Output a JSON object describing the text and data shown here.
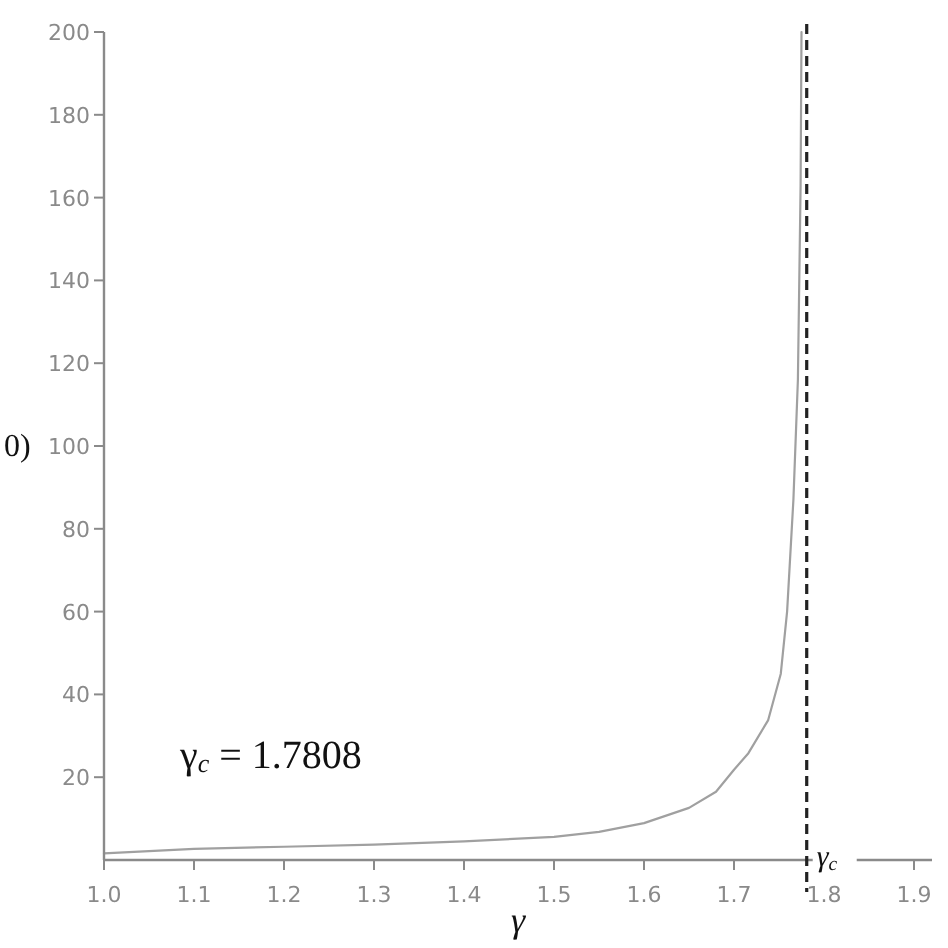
{
  "chart_data": {
    "type": "line",
    "xlabel": "γ",
    "ylabel": "0)",
    "annotations": [
      "γ$_{c}$ = 1.7808"
    ],
    "xlim": [
      1,
      1.92
    ],
    "xticks": [
      {
        "value": 1,
        "label": "1.0"
      },
      1.1,
      1.2,
      1.3,
      1.4,
      1.5,
      1.6,
      1.7,
      1.8,
      1.9
    ],
    "ylim": [
      0,
      200
    ],
    "yticks": [
      20,
      40,
      60,
      80,
      100,
      120,
      140,
      160,
      180,
      200
    ],
    "ref_lines": [
      {
        "axis": "x",
        "value": 1.7808,
        "label": "γ$_{c}$",
        "line_style": "dashed",
        "color": "#222222"
      }
    ],
    "series": [
      {
        "color": "#a0a0a0",
        "x": [
          1.0,
          1.1,
          1.2,
          1.3,
          1.4,
          1.5,
          1.55,
          1.6,
          1.65,
          1.68,
          1.7,
          1.716,
          1.738,
          1.752,
          1.759,
          1.766,
          1.771,
          1.774,
          1.775
        ],
        "values": [
          1.6,
          2.7,
          3.2,
          3.7,
          4.5,
          5.6,
          6.8,
          8.9,
          12.6,
          16.5,
          21.8,
          25.8,
          33.8,
          45,
          60,
          87,
          116,
          163,
          200
        ]
      }
    ]
  }
}
